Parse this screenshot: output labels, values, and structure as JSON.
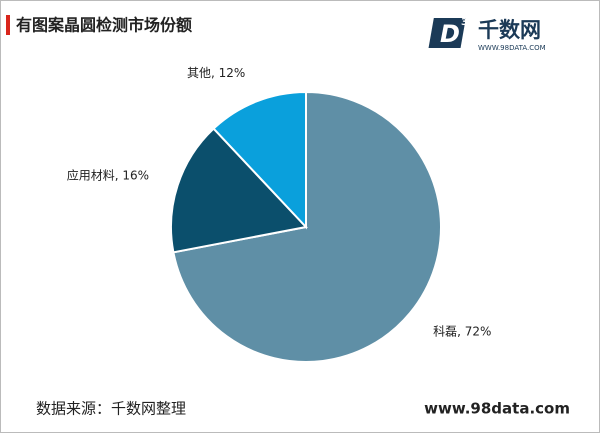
{
  "chart_data": {
    "type": "pie",
    "title": "有图案晶圆检测市场份额",
    "values": [
      72,
      16,
      12
    ],
    "value_labels": [
      "科磊, 72%",
      "应用材料, 16%",
      "其他, 12%"
    ],
    "colors": [
      "#5f8fa6",
      "#0b4f6c",
      "#0aa0dc"
    ]
  },
  "logo": {
    "mark": "D",
    "superscript": "3",
    "name": "千数网",
    "url": "WWW.98DATA.COM"
  },
  "footer": {
    "source": "数据来源：千数网整理",
    "website": "www.98data.com"
  }
}
